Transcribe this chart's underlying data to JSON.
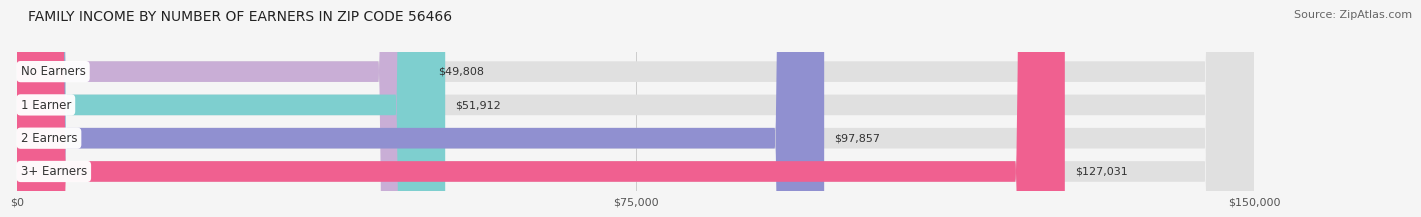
{
  "title": "FAMILY INCOME BY NUMBER OF EARNERS IN ZIP CODE 56466",
  "source": "Source: ZipAtlas.com",
  "categories": [
    "No Earners",
    "1 Earner",
    "2 Earners",
    "3+ Earners"
  ],
  "values": [
    49808,
    51912,
    97857,
    127031
  ],
  "labels": [
    "$49,808",
    "$51,912",
    "$97,857",
    "$127,031"
  ],
  "bar_colors": [
    "#c9aed6",
    "#7ecfcf",
    "#9090d0",
    "#f06090"
  ],
  "bar_bg_color": "#e0e0e0",
  "background_color": "#f5f5f5",
  "max_value": 150000,
  "xtick_values": [
    0,
    75000,
    150000
  ],
  "xtick_labels": [
    "$0",
    "$75,000",
    "$150,000"
  ],
  "title_fontsize": 10,
  "source_fontsize": 8,
  "label_fontsize": 8,
  "tick_fontsize": 8,
  "category_fontsize": 8.5
}
